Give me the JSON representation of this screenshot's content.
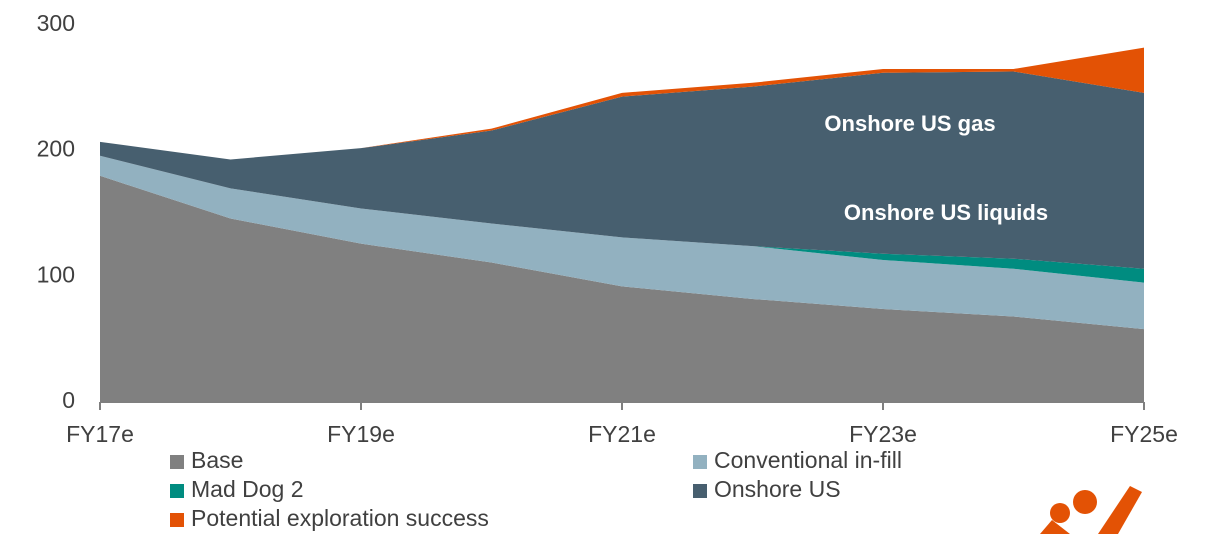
{
  "chart_data": {
    "type": "stacked_area",
    "categories": [
      "FY17e",
      null,
      "FY19e",
      null,
      "FY21e",
      null,
      "FY23e",
      null,
      "FY25e"
    ],
    "series": [
      {
        "name": "Base",
        "color": "#808080",
        "values": [
          180,
          146,
          126,
          111,
          92,
          82,
          74,
          68,
          58
        ]
      },
      {
        "name": "Conventional in-fill",
        "color": "#92b1c0",
        "values": [
          16,
          24,
          28,
          31,
          39,
          42,
          39,
          38,
          37
        ]
      },
      {
        "name": "Mad Dog 2",
        "color": "#008c80",
        "values": [
          0,
          0,
          0,
          0,
          0,
          0,
          5,
          8,
          11
        ]
      },
      {
        "name": "Onshore US",
        "color": "#475f6f",
        "values": [
          11,
          23,
          48,
          74,
          112,
          127,
          144,
          149,
          140
        ]
      },
      {
        "name": "Potential exploration success",
        "color": "#e35205",
        "values": [
          0,
          0,
          0,
          1.5,
          3,
          3,
          3,
          2,
          36
        ]
      }
    ],
    "annotations": [
      "Onshore US gas",
      "Onshore US liquids"
    ],
    "ylim": [
      0,
      300
    ],
    "yticks": [
      0,
      100,
      200,
      300
    ],
    "grid": false
  }
}
